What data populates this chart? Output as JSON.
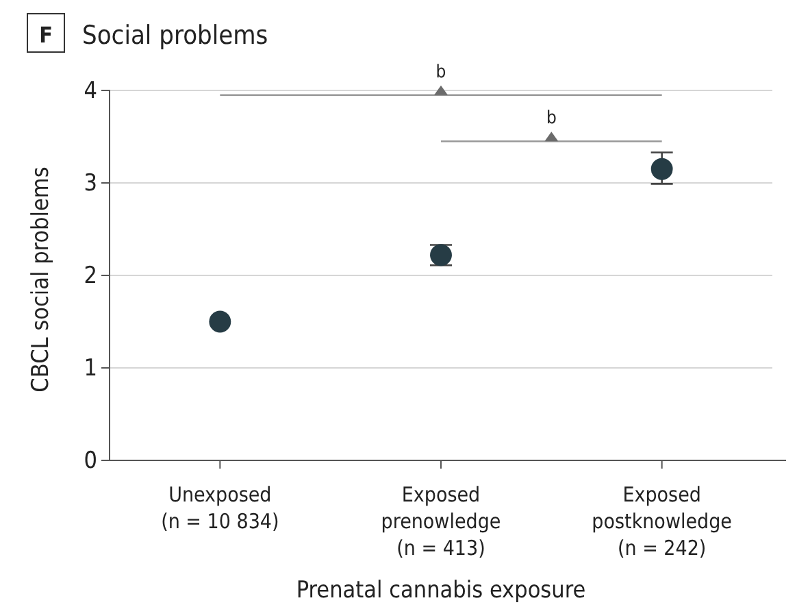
{
  "chart_data": {
    "type": "scatter",
    "title": "Social problems",
    "xlabel": "Prenatal cannabis exposure",
    "ylabel": "CBCL social problems",
    "categories": [
      "Unexposed\n(n = 10 834)",
      "Exposed\nprenowledge\n(n = 413)",
      "Exposed\npostknowledge\n(n = 242)"
    ],
    "series": [
      {
        "color": "#263c45",
        "values": [
          1.5,
          2.22,
          3.15
        ],
        "errors": [
          null,
          [
            2.11,
            2.33
          ],
          [
            2.99,
            3.33
          ]
        ]
      }
    ],
    "ylim": [
      0,
      4
    ],
    "yticks": [
      0,
      1,
      2,
      3,
      4
    ],
    "grid": "y",
    "marker": "circle",
    "annotations": [
      "F",
      "b",
      "b"
    ]
  }
}
